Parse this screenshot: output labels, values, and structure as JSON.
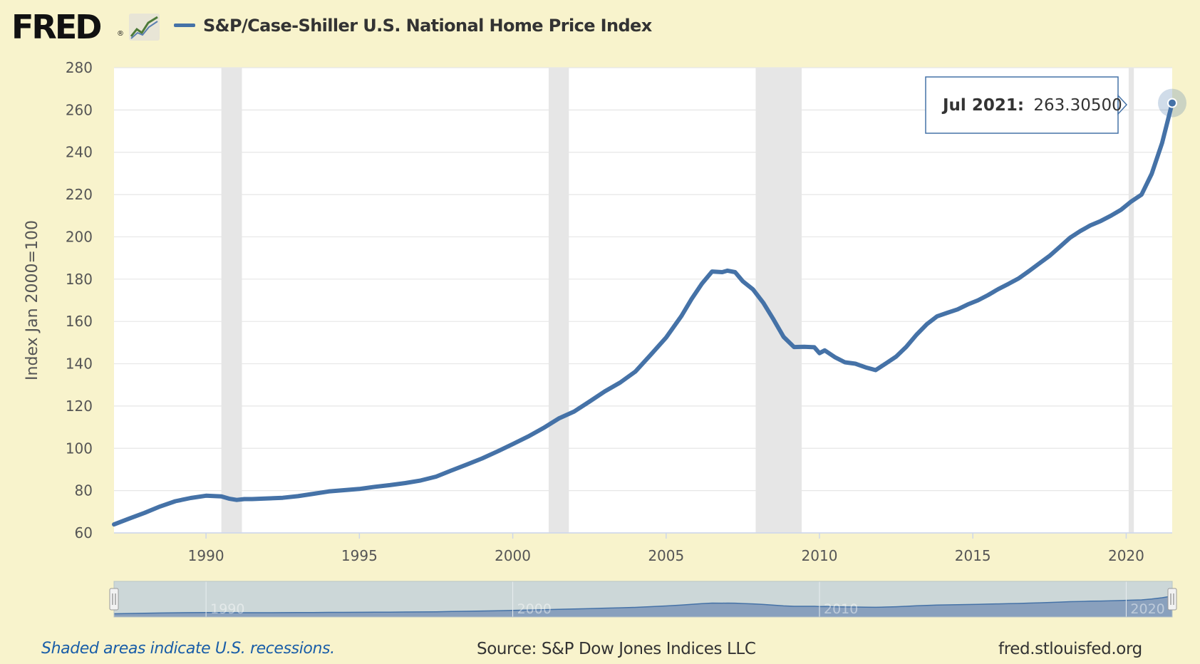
{
  "header": {
    "logo_text": "FRED",
    "logo_reg": "®",
    "series_title": "S&P/Case-Shiller U.S. National Home Price Index"
  },
  "footer": {
    "recession_note": "Shaded areas indicate U.S. recessions.",
    "source": "Source: S&P Dow Jones Indices LLC",
    "url": "fred.stlouisfed.org"
  },
  "tooltip": {
    "label": "Jul 2021:",
    "value": "263.30500"
  },
  "navigator": {
    "ticks": [
      "1990",
      "2000",
      "2010",
      "2020"
    ]
  },
  "colors": {
    "background": "#f8f3cc",
    "plot_bg": "#ffffff",
    "line": "#4572a7",
    "recession": "#e6e6e6",
    "grid": "#e6e6e6",
    "note": "#1a5ea8"
  },
  "chart_data": {
    "type": "line",
    "ylabel": "Index Jan 2000=100",
    "ylim": [
      60,
      280
    ],
    "yticks": [
      60,
      80,
      100,
      120,
      140,
      160,
      180,
      200,
      220,
      240,
      260,
      280
    ],
    "xlim": [
      1987.0,
      2021.5
    ],
    "xticks": [
      1990,
      1995,
      2000,
      2005,
      2010,
      2015,
      2020
    ],
    "grid": true,
    "legend": "top-left",
    "recessions": [
      [
        1990.5,
        1991.17
      ],
      [
        2001.17,
        2001.83
      ],
      [
        2007.92,
        2009.42
      ],
      [
        2020.08,
        2020.25
      ]
    ],
    "series": [
      {
        "name": "S&P/Case-Shiller U.S. National Home Price Index",
        "x": [
          1987.0,
          1987.5,
          1988.0,
          1988.5,
          1989.0,
          1989.5,
          1990.0,
          1990.5,
          1990.75,
          1991.0,
          1991.25,
          1991.5,
          1992.0,
          1992.5,
          1993.0,
          1993.5,
          1994.0,
          1994.5,
          1995.0,
          1995.5,
          1996.0,
          1996.5,
          1997.0,
          1997.5,
          1998.0,
          1998.5,
          1999.0,
          1999.5,
          2000.0,
          2000.5,
          2001.0,
          2001.5,
          2002.0,
          2002.5,
          2003.0,
          2003.5,
          2004.0,
          2004.5,
          2005.0,
          2005.5,
          2005.83,
          2006.17,
          2006.5,
          2006.83,
          2007.0,
          2007.25,
          2007.5,
          2007.83,
          2008.17,
          2008.5,
          2008.83,
          2009.17,
          2009.5,
          2009.83,
          2010.0,
          2010.17,
          2010.5,
          2010.83,
          2011.17,
          2011.5,
          2011.83,
          2012.0,
          2012.17,
          2012.5,
          2012.83,
          2013.17,
          2013.5,
          2013.83,
          2014.17,
          2014.5,
          2014.83,
          2015.17,
          2015.5,
          2015.83,
          2016.17,
          2016.5,
          2016.83,
          2017.17,
          2017.5,
          2017.83,
          2018.17,
          2018.5,
          2018.83,
          2019.17,
          2019.5,
          2019.83,
          2020.17,
          2020.5,
          2020.83,
          2021.17,
          2021.5
        ],
        "values": [
          64.0,
          66.8,
          69.5,
          72.5,
          75.0,
          76.5,
          77.6,
          77.3,
          76.2,
          75.6,
          76.0,
          76.0,
          76.3,
          76.6,
          77.4,
          78.5,
          79.6,
          80.2,
          80.8,
          81.8,
          82.6,
          83.6,
          84.8,
          86.6,
          89.5,
          92.3,
          95.2,
          98.5,
          102.0,
          105.6,
          109.6,
          114.1,
          117.4,
          122.1,
          126.9,
          131.1,
          136.3,
          144.3,
          152.4,
          162.6,
          170.6,
          177.9,
          183.6,
          183.3,
          184.0,
          183.3,
          179.0,
          175.2,
          168.8,
          161.0,
          152.7,
          147.9,
          148.0,
          147.8,
          145.0,
          146.3,
          143.1,
          140.7,
          140.0,
          138.3,
          137.0,
          138.6,
          140.2,
          143.4,
          148.0,
          153.8,
          158.7,
          162.4,
          164.1,
          165.7,
          168.0,
          170.0,
          172.5,
          175.3,
          177.8,
          180.4,
          183.8,
          187.5,
          191.0,
          195.2,
          199.6,
          202.7,
          205.4,
          207.5,
          210.0,
          212.8,
          216.8,
          220.0,
          229.8,
          244.4,
          263.3
        ]
      }
    ]
  }
}
